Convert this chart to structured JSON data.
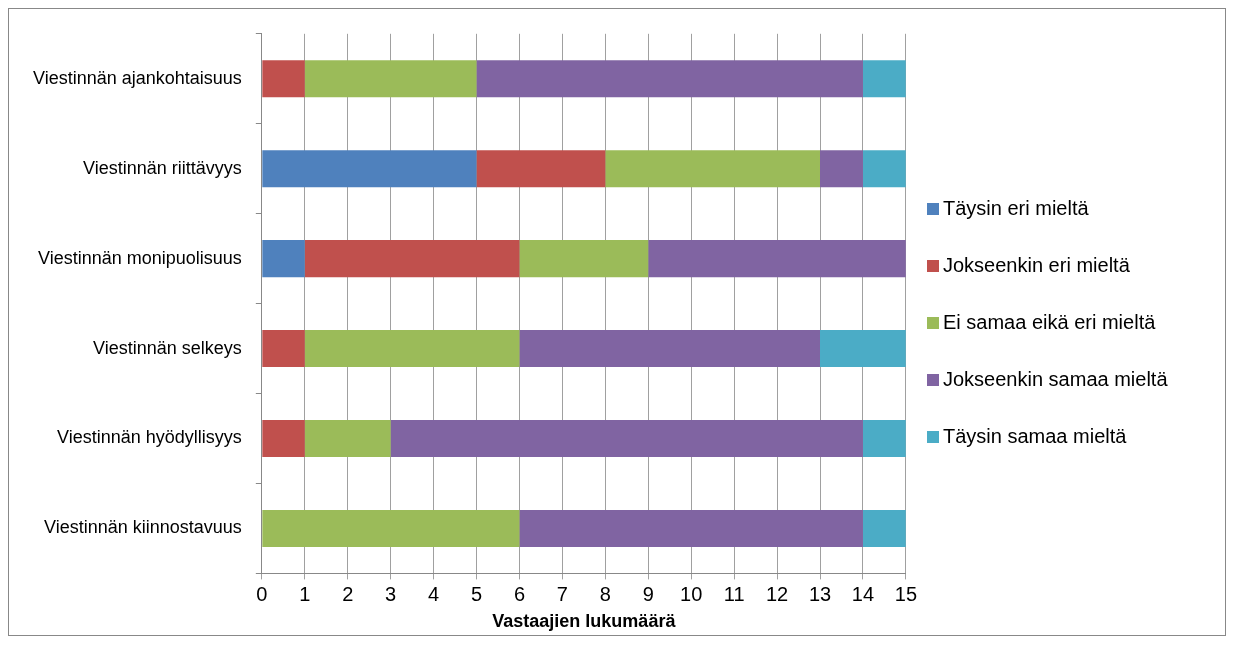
{
  "chart_data": {
    "type": "bar",
    "orientation": "horizontal",
    "stacked": true,
    "categories": [
      "Viestinnän ajankohtaisuus",
      "Viestinnän riittävyys",
      "Viestinnän monipuolisuus",
      "Viestinnän selkeys",
      "Viestinnän hyödyllisyys",
      "Viestinnän kiinnostavuus"
    ],
    "series": [
      {
        "name": "Täysin eri mieltä",
        "color": "#4f81bd",
        "values": [
          0,
          5,
          1,
          0,
          0,
          0
        ]
      },
      {
        "name": "Jokseenkin eri mieltä",
        "color": "#c0504d",
        "values": [
          1,
          3,
          5,
          1,
          1,
          0
        ]
      },
      {
        "name": "Ei samaa eikä eri mieltä",
        "color": "#9bbb59",
        "values": [
          4,
          5,
          3,
          5,
          2,
          6
        ]
      },
      {
        "name": "Jokseenkin samaa mieltä",
        "color": "#8064a2",
        "values": [
          9,
          1,
          6,
          7,
          11,
          8
        ]
      },
      {
        "name": "Täysin samaa mieltä",
        "color": "#4bacc6",
        "values": [
          1,
          1,
          0,
          2,
          1,
          1
        ]
      }
    ],
    "xlabel": "Vastaajien lukumäärä",
    "xlim": [
      0,
      15
    ],
    "xticks": [
      0,
      1,
      2,
      3,
      4,
      5,
      6,
      7,
      8,
      9,
      10,
      11,
      12,
      13,
      14,
      15
    ],
    "grid": "x",
    "legend": "right"
  }
}
